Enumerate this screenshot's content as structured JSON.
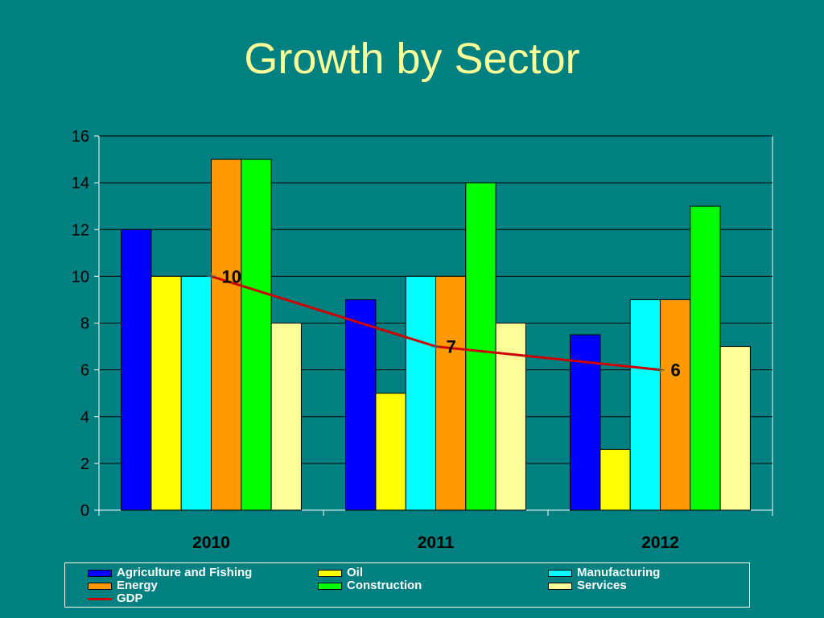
{
  "slide": {
    "title": "Growth by Sector"
  },
  "chart_data": {
    "type": "bar",
    "title": "Growth by Sector",
    "categories": [
      "2010",
      "2011",
      "2012"
    ],
    "ylim": [
      0,
      16
    ],
    "yticks": [
      0,
      2,
      4,
      6,
      8,
      10,
      12,
      14,
      16
    ],
    "grid": true,
    "legend_placement": "bottom",
    "series": [
      {
        "name": "Agriculture and Fishing",
        "color": "#0000FF",
        "values": [
          12,
          9,
          7.5
        ]
      },
      {
        "name": "Oil",
        "color": "#FFFF00",
        "values": [
          10,
          5,
          2.6
        ]
      },
      {
        "name": "Manufacturing",
        "color": "#00FFFF",
        "values": [
          10,
          10,
          9
        ]
      },
      {
        "name": "Energy",
        "color": "#FF9900",
        "values": [
          15,
          10,
          9
        ]
      },
      {
        "name": "Construction",
        "color": "#00FF00",
        "values": [
          15,
          14,
          13
        ]
      },
      {
        "name": "Services",
        "color": "#FFFF99",
        "values": [
          8,
          8,
          7
        ]
      }
    ],
    "line_series": [
      {
        "name": "GDP",
        "type": "line",
        "color": "#CC0000",
        "values": [
          10,
          7,
          6
        ],
        "data_labels": [
          "10",
          "7",
          "6"
        ]
      }
    ]
  },
  "colors": {
    "background": "#008080",
    "title": "#FFFF99",
    "axis": "#ffffff",
    "grid": "#000000"
  }
}
